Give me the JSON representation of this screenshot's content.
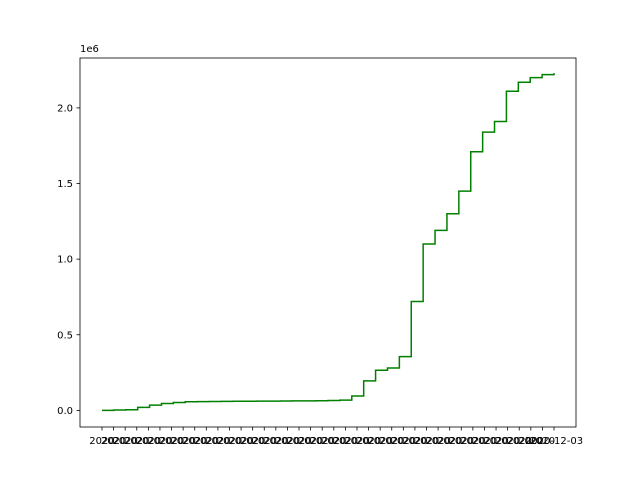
{
  "chart_data": {
    "type": "line",
    "drawstyle": "steps-post",
    "title": "",
    "xlabel": "",
    "ylabel": "",
    "y_offset_text": "1e6",
    "ylim": [
      -110000,
      2330000
    ],
    "yticks": [
      0,
      500000,
      1000000,
      1500000,
      2000000
    ],
    "ytick_labels": [
      "0.0",
      "0.5",
      "1.0",
      "1.5",
      "2.0"
    ],
    "grid": false,
    "legend": "none",
    "series": [
      {
        "color": "#008000",
        "x": [
          0,
          1,
          2,
          3,
          4,
          5,
          6,
          7,
          8,
          9,
          10,
          11,
          12,
          13,
          14,
          15,
          16,
          17,
          18,
          19,
          20,
          21,
          22,
          23,
          24,
          25,
          26,
          27,
          28,
          29,
          30,
          31,
          32,
          33,
          34,
          35,
          36,
          37,
          38
        ],
        "values": [
          0,
          2000,
          4000,
          20000,
          35000,
          45000,
          52000,
          57000,
          58000,
          59000,
          59500,
          60000,
          60500,
          61000,
          61500,
          62000,
          62500,
          63000,
          63500,
          65000,
          68000,
          95000,
          195000,
          265000,
          280000,
          355000,
          720000,
          1100000,
          1190000,
          1300000,
          1450000,
          1710000,
          1840000,
          1910000,
          2110000,
          2170000,
          2200000,
          2220000,
          2230000
        ]
      }
    ],
    "x_tick_labels": [
      "2020",
      "2020",
      "2020",
      "2020",
      "2020",
      "2020",
      "2020",
      "2020",
      "2020",
      "2020",
      "2020",
      "2020",
      "2020",
      "2020",
      "2020",
      "2020",
      "2020",
      "2020",
      "2020",
      "2020",
      "2020",
      "2020",
      "2020",
      "2020",
      "2020",
      "2020",
      "2020",
      "2020",
      "2020",
      "2020",
      "2020",
      "2020",
      "2020",
      "2020",
      "2020",
      "2020",
      "2020",
      "2020",
      "2020",
      "2020-12-03"
    ]
  }
}
